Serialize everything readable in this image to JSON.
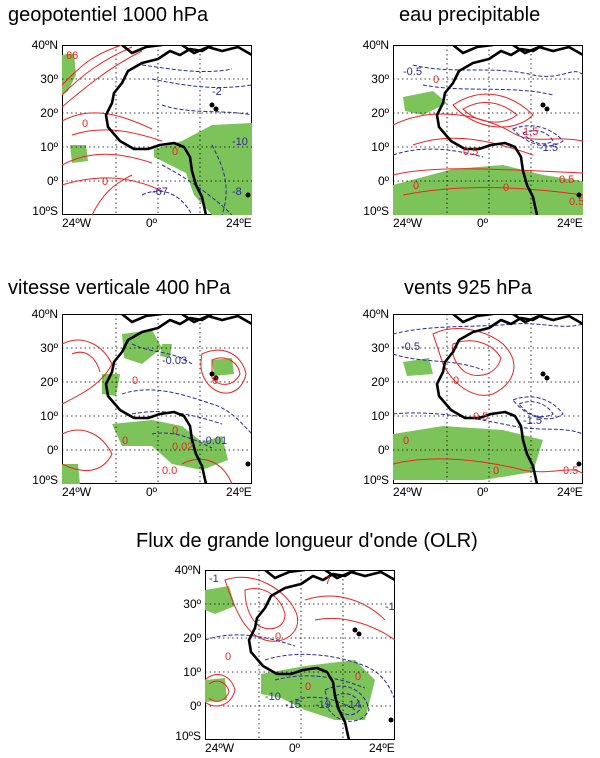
{
  "colors": {
    "positive_contour": "#ee2222",
    "negative_contour": "#2a2a9a",
    "significance_fill": "#7cc45a",
    "coast": "#000000",
    "grid": "#000000"
  },
  "axis": {
    "y_ticks": [
      "40ºN",
      "30º",
      "20º",
      "10º",
      "0º",
      "10ºS"
    ],
    "x_ticks": [
      "24ºW",
      "0º",
      "24ºE"
    ]
  },
  "panels": [
    {
      "title": "geopotentiel 1000 hPa",
      "labels": [
        "0",
        "0",
        "0",
        "-67",
        "-8",
        "-10",
        "-2",
        "66"
      ]
    },
    {
      "title": "eau precipitable",
      "labels": [
        "-0.5",
        "0",
        "0.5",
        "0",
        "-1.5",
        "0.5",
        "0",
        "1.5",
        "0.5"
      ]
    },
    {
      "title": "vitesse verticale 400 hPa",
      "labels": [
        "0",
        "-0.03",
        "0",
        "0",
        "-0.01",
        "0.02",
        "0.0",
        "0"
      ]
    },
    {
      "title": "vents  925 hPa",
      "labels": [
        "-0.5",
        "0",
        "0.5",
        "-1.5",
        "0",
        "0.5",
        "0"
      ]
    },
    {
      "title": "Flux de grande longueur d'onde (OLR)",
      "labels": [
        "-1",
        "7",
        "0",
        "0",
        "-10",
        "0",
        "-15",
        "-19",
        "-14",
        "0",
        "-1"
      ]
    }
  ]
}
